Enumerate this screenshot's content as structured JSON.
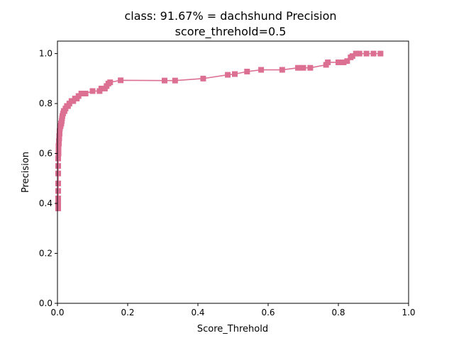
{
  "chart_data": {
    "type": "line",
    "title_line1": "class: 91.67% = dachshund Precision",
    "title_line2": "score_threhold=0.5",
    "xlabel": "Score_Threhold",
    "ylabel": "Precision",
    "xlim": [
      0.0,
      1.0
    ],
    "ylim": [
      0.0,
      1.05
    ],
    "x_ticks": [
      0.0,
      0.2,
      0.4,
      0.6,
      0.8,
      1.0
    ],
    "x_tick_labels": [
      "0.0",
      "0.2",
      "0.4",
      "0.6",
      "0.8",
      "1.0"
    ],
    "y_ticks": [
      0.0,
      0.2,
      0.4,
      0.6,
      0.8,
      1.0
    ],
    "y_tick_labels": [
      "0.0",
      "0.2",
      "0.4",
      "0.6",
      "0.8",
      "1.0"
    ],
    "grid": false,
    "legend": false,
    "marker": "square",
    "color": "#dc7093",
    "series": [
      {
        "x": [
          0.002,
          0.002,
          0.002,
          0.002,
          0.002,
          0.002,
          0.002,
          0.002,
          0.003,
          0.003,
          0.003,
          0.004,
          0.004,
          0.005,
          0.005,
          0.006,
          0.006,
          0.007,
          0.008,
          0.009,
          0.01,
          0.011,
          0.012,
          0.013,
          0.014,
          0.016,
          0.018,
          0.02,
          0.023,
          0.027,
          0.03,
          0.034,
          0.04,
          0.045,
          0.05,
          0.055,
          0.06,
          0.068,
          0.075,
          0.08,
          0.1,
          0.12,
          0.125,
          0.135,
          0.14,
          0.145,
          0.15,
          0.18,
          0.305,
          0.335,
          0.415,
          0.485,
          0.505,
          0.54,
          0.58,
          0.64,
          0.685,
          0.7,
          0.72,
          0.765,
          0.77,
          0.8,
          0.815,
          0.825,
          0.835,
          0.84,
          0.85,
          0.86,
          0.88,
          0.9,
          0.92
        ],
        "y": [
          0.38,
          0.4,
          0.42,
          0.45,
          0.48,
          0.52,
          0.55,
          0.58,
          0.6,
          0.62,
          0.63,
          0.64,
          0.65,
          0.66,
          0.67,
          0.68,
          0.69,
          0.7,
          0.71,
          0.71,
          0.72,
          0.72,
          0.73,
          0.74,
          0.75,
          0.76,
          0.77,
          0.77,
          0.78,
          0.79,
          0.79,
          0.8,
          0.81,
          0.81,
          0.82,
          0.82,
          0.83,
          0.84,
          0.84,
          0.84,
          0.85,
          0.85,
          0.86,
          0.86,
          0.87,
          0.88,
          0.885,
          0.893,
          0.892,
          0.892,
          0.9,
          0.915,
          0.918,
          0.928,
          0.935,
          0.935,
          0.943,
          0.943,
          0.943,
          0.955,
          0.965,
          0.965,
          0.965,
          0.97,
          0.985,
          0.99,
          1.0,
          1.0,
          1.0,
          1.0,
          1.0
        ]
      }
    ]
  }
}
